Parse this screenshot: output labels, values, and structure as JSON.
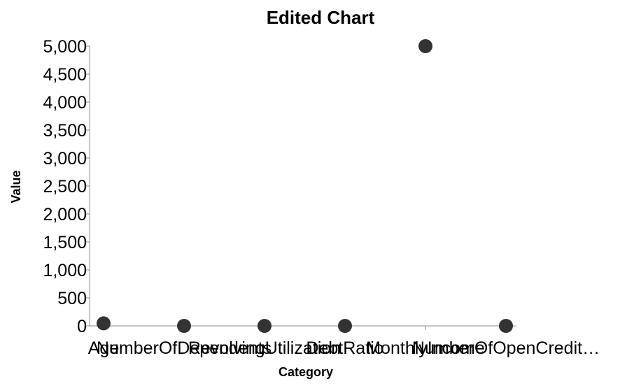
{
  "chart_data": {
    "type": "scatter",
    "title": "Edited Chart",
    "xlabel": "Category",
    "ylabel": "Value",
    "categories": [
      "Age",
      "NumberOfDependents",
      "RevolvingUtilization",
      "DebtRatio",
      "MonthlyIncome",
      "NumberOfOpenCredit…"
    ],
    "values": [
      45,
      0,
      0,
      0,
      5000,
      0
    ],
    "ylim": [
      0,
      5000
    ],
    "yticks": [
      0,
      500,
      1000,
      1500,
      2000,
      2500,
      3000,
      3500,
      4000,
      4500,
      5000
    ],
    "ytick_labels": [
      "0",
      "500",
      "1,000",
      "1,500",
      "2,000",
      "2,500",
      "3,000",
      "3,500",
      "4,000",
      "4,500",
      "5,000"
    ],
    "grid": false,
    "legend": "none",
    "point_color": "#333333"
  }
}
